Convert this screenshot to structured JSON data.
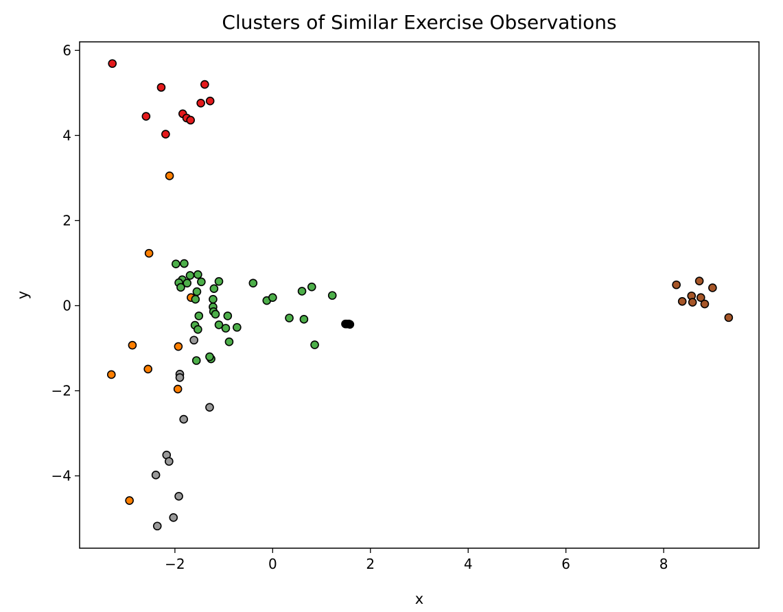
{
  "chart_data": {
    "type": "scatter",
    "title": "Clusters of Similar Exercise Observations",
    "xlabel": "x",
    "ylabel": "y",
    "xlim": [
      -3.95,
      9.95
    ],
    "ylim": [
      -5.7,
      6.2
    ],
    "xticks": [
      -2,
      0,
      2,
      4,
      6,
      8
    ],
    "yticks": [
      -4,
      -2,
      0,
      2,
      4,
      6
    ],
    "xtick_labels": [
      "−2",
      "0",
      "2",
      "4",
      "6",
      "8"
    ],
    "ytick_labels": [
      "−4",
      "−2",
      "0",
      "2",
      "4",
      "6"
    ],
    "grid": false,
    "legend": "none",
    "marker_edge_color": "#000000",
    "series": [
      {
        "color": "#e41a1c",
        "points": [
          [
            -3.28,
            5.69
          ],
          [
            -2.28,
            5.13
          ],
          [
            -1.39,
            5.2
          ],
          [
            -1.28,
            4.81
          ],
          [
            -1.47,
            4.76
          ],
          [
            -2.59,
            4.45
          ],
          [
            -1.84,
            4.51
          ],
          [
            -1.76,
            4.41
          ],
          [
            -1.68,
            4.36
          ],
          [
            -2.19,
            4.03
          ]
        ]
      },
      {
        "color": "#ff7f00",
        "points": [
          [
            -2.11,
            3.05
          ],
          [
            -2.53,
            1.23
          ],
          [
            -1.67,
            0.19
          ],
          [
            -2.87,
            -0.93
          ],
          [
            -1.93,
            -0.96
          ],
          [
            -2.55,
            -1.49
          ],
          [
            -3.3,
            -1.62
          ],
          [
            -1.94,
            -1.96
          ],
          [
            -2.93,
            -4.58
          ]
        ]
      },
      {
        "color": "#4daf4a",
        "points": [
          [
            -1.98,
            0.98
          ],
          [
            -1.81,
            0.99
          ],
          [
            -1.53,
            0.73
          ],
          [
            -1.69,
            0.71
          ],
          [
            -1.85,
            0.61
          ],
          [
            -1.46,
            0.56
          ],
          [
            -1.1,
            0.57
          ],
          [
            -1.92,
            0.54
          ],
          [
            -1.75,
            0.53
          ],
          [
            -1.88,
            0.43
          ],
          [
            -1.2,
            0.4
          ],
          [
            -1.55,
            0.33
          ],
          [
            -0.4,
            0.53
          ],
          [
            -0.12,
            0.12
          ],
          [
            0.0,
            0.19
          ],
          [
            0.6,
            0.34
          ],
          [
            0.8,
            0.44
          ],
          [
            1.22,
            0.24
          ],
          [
            -1.22,
            0.15
          ],
          [
            -1.58,
            0.15
          ],
          [
            -1.22,
            -0.03
          ],
          [
            -1.21,
            -0.14
          ],
          [
            -1.17,
            -0.2
          ],
          [
            -1.51,
            -0.24
          ],
          [
            -0.92,
            -0.24
          ],
          [
            0.34,
            -0.29
          ],
          [
            0.64,
            -0.32
          ],
          [
            -1.59,
            -0.46
          ],
          [
            -1.1,
            -0.45
          ],
          [
            -0.96,
            -0.53
          ],
          [
            -0.73,
            -0.51
          ],
          [
            -1.53,
            -0.56
          ],
          [
            -0.89,
            -0.85
          ],
          [
            0.86,
            -0.92
          ],
          [
            -1.26,
            -1.25
          ],
          [
            -1.29,
            -1.2
          ],
          [
            -1.56,
            -1.29
          ],
          [
            1.58,
            -0.44
          ]
        ]
      },
      {
        "color": "#000000",
        "points": [
          [
            1.49,
            -0.43
          ],
          [
            1.52,
            -0.43
          ],
          [
            1.56,
            -0.43
          ]
        ]
      },
      {
        "color": "#999999",
        "points": [
          [
            -1.61,
            -0.81
          ],
          [
            -1.9,
            -1.61
          ],
          [
            -1.9,
            -1.69
          ],
          [
            -1.29,
            -2.39
          ],
          [
            -1.82,
            -2.67
          ],
          [
            -2.17,
            -3.51
          ],
          [
            -2.12,
            -3.66
          ],
          [
            -2.39,
            -3.98
          ],
          [
            -1.92,
            -4.48
          ],
          [
            -2.03,
            -4.98
          ],
          [
            -2.36,
            -5.18
          ]
        ]
      },
      {
        "color": "#a65628",
        "points": [
          [
            8.26,
            0.49
          ],
          [
            8.73,
            0.58
          ],
          [
            9.0,
            0.42
          ],
          [
            8.38,
            0.1
          ],
          [
            8.57,
            0.23
          ],
          [
            8.76,
            0.19
          ],
          [
            8.59,
            0.08
          ],
          [
            8.84,
            0.04
          ],
          [
            9.33,
            -0.28
          ]
        ]
      }
    ]
  }
}
